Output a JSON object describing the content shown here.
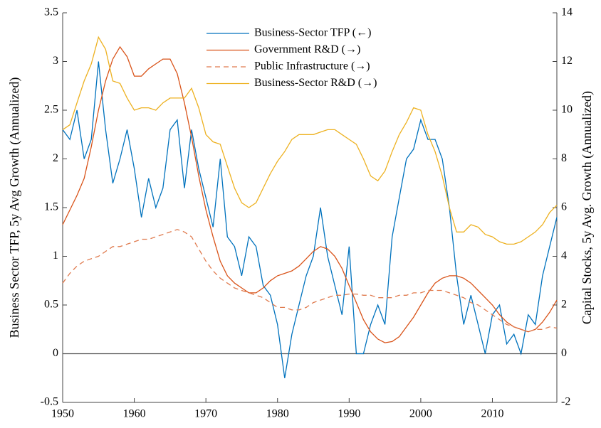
{
  "chart_data": {
    "type": "line",
    "y_label": "Business Sector TFP, 5y Avg Growth (Annualized)",
    "y2_label": "Capital Stocks, 5y Avg. Growth (Annualized)",
    "x": [
      1950,
      1951,
      1952,
      1953,
      1954,
      1955,
      1956,
      1957,
      1958,
      1959,
      1960,
      1961,
      1962,
      1963,
      1964,
      1965,
      1966,
      1967,
      1968,
      1969,
      1970,
      1971,
      1972,
      1973,
      1974,
      1975,
      1976,
      1977,
      1978,
      1979,
      1980,
      1981,
      1982,
      1983,
      1984,
      1985,
      1986,
      1987,
      1988,
      1989,
      1990,
      1991,
      1992,
      1993,
      1994,
      1995,
      1996,
      1997,
      1998,
      1999,
      2000,
      2001,
      2002,
      2003,
      2004,
      2005,
      2006,
      2007,
      2008,
      2009,
      2010,
      2011,
      2012,
      2013,
      2014,
      2015,
      2016,
      2017,
      2018,
      2019
    ],
    "series": [
      {
        "name": "Business-Sector TFP (←)",
        "color": "#0072bd",
        "axis": "y",
        "dashed": false,
        "values": [
          2.3,
          2.2,
          2.5,
          2.0,
          2.2,
          3.0,
          2.3,
          1.75,
          2.0,
          2.3,
          1.9,
          1.4,
          1.8,
          1.5,
          1.7,
          2.3,
          2.4,
          1.7,
          2.3,
          1.9,
          1.6,
          1.3,
          2.0,
          1.2,
          1.1,
          0.8,
          1.2,
          1.1,
          0.7,
          0.6,
          0.3,
          -0.25,
          0.2,
          0.5,
          0.8,
          1.0,
          1.5,
          1.0,
          0.7,
          0.4,
          1.1,
          0.0,
          0.0,
          0.3,
          0.5,
          0.3,
          1.2,
          1.6,
          2.0,
          2.1,
          2.4,
          2.2,
          2.2,
          2.0,
          1.5,
          0.8,
          0.3,
          0.6,
          0.3,
          0.0,
          0.4,
          0.5,
          0.1,
          0.2,
          0.0,
          0.4,
          0.3,
          0.8,
          1.1,
          1.4
        ]
      },
      {
        "name": "Government R&D (→)",
        "color": "#d95319",
        "axis": "y2",
        "dashed": false,
        "values": [
          5.3,
          5.9,
          6.5,
          7.2,
          8.5,
          10,
          11.2,
          12.1,
          12.6,
          12.2,
          11.4,
          11.4,
          11.7,
          11.9,
          12.1,
          12.1,
          11.5,
          10.3,
          8.9,
          7.3,
          5.9,
          4.8,
          3.8,
          3.2,
          2.9,
          2.7,
          2.5,
          2.5,
          2.7,
          3.0,
          3.2,
          3.3,
          3.4,
          3.6,
          3.9,
          4.2,
          4.4,
          4.3,
          4.0,
          3.5,
          2.8,
          2.1,
          1.4,
          0.9,
          0.6,
          0.45,
          0.5,
          0.7,
          1.1,
          1.5,
          2.0,
          2.5,
          2.9,
          3.1,
          3.2,
          3.2,
          3.1,
          2.9,
          2.6,
          2.3,
          2.0,
          1.6,
          1.3,
          1.1,
          1.0,
          0.9,
          1.0,
          1.3,
          1.7,
          2.2
        ]
      },
      {
        "name": "Public Infrastructure (→)",
        "color": "#e07b4f",
        "axis": "y2",
        "dashed": true,
        "values": [
          2.9,
          3.3,
          3.6,
          3.8,
          3.9,
          4.0,
          4.2,
          4.4,
          4.4,
          4.5,
          4.6,
          4.7,
          4.7,
          4.8,
          4.9,
          5.0,
          5.1,
          5.0,
          4.8,
          4.3,
          3.8,
          3.4,
          3.1,
          2.9,
          2.7,
          2.6,
          2.5,
          2.4,
          2.3,
          2.1,
          1.9,
          1.9,
          1.8,
          1.8,
          1.9,
          2.1,
          2.2,
          2.3,
          2.4,
          2.4,
          2.45,
          2.45,
          2.4,
          2.4,
          2.3,
          2.3,
          2.3,
          2.4,
          2.4,
          2.5,
          2.5,
          2.6,
          2.6,
          2.6,
          2.5,
          2.4,
          2.3,
          2.1,
          2.0,
          1.8,
          1.6,
          1.4,
          1.2,
          1.1,
          1.0,
          0.9,
          1.0,
          1.0,
          1.1,
          1.05
        ]
      },
      {
        "name": "Business-Sector R&D (→)",
        "color": "#edb120",
        "axis": "y2",
        "dashed": false,
        "values": [
          9.2,
          9.4,
          10.3,
          11.2,
          11.9,
          13.0,
          12.5,
          11.2,
          11.1,
          10.5,
          10.0,
          10.1,
          10.1,
          10.0,
          10.3,
          10.5,
          10.5,
          10.5,
          10.9,
          10.1,
          9.0,
          8.7,
          8.6,
          7.7,
          6.8,
          6.2,
          6.0,
          6.2,
          6.8,
          7.4,
          7.9,
          8.3,
          8.8,
          9.0,
          9.0,
          9.0,
          9.1,
          9.2,
          9.2,
          9.0,
          8.8,
          8.6,
          8.0,
          7.3,
          7.1,
          7.5,
          8.3,
          9.0,
          9.5,
          10.1,
          10.0,
          9.0,
          8.3,
          7.3,
          6.0,
          5.0,
          5.0,
          5.3,
          5.2,
          4.9,
          4.8,
          4.6,
          4.5,
          4.5,
          4.6,
          4.8,
          5.0,
          5.3,
          5.8,
          6.1
        ]
      }
    ],
    "xlim": [
      1950,
      2019
    ],
    "xticks": [
      1950,
      1960,
      1970,
      1980,
      1990,
      2000,
      2010
    ],
    "ylim": [
      -0.5,
      3.5
    ],
    "yticks": [
      -0.5,
      0,
      0.5,
      1,
      1.5,
      2,
      2.5,
      3,
      3.5
    ],
    "y2lim": [
      -2,
      14
    ],
    "y2ticks": [
      -2,
      0,
      2,
      4,
      6,
      8,
      10,
      12,
      14
    ],
    "hlines": [
      0
    ],
    "grid": false,
    "legend": "top"
  }
}
